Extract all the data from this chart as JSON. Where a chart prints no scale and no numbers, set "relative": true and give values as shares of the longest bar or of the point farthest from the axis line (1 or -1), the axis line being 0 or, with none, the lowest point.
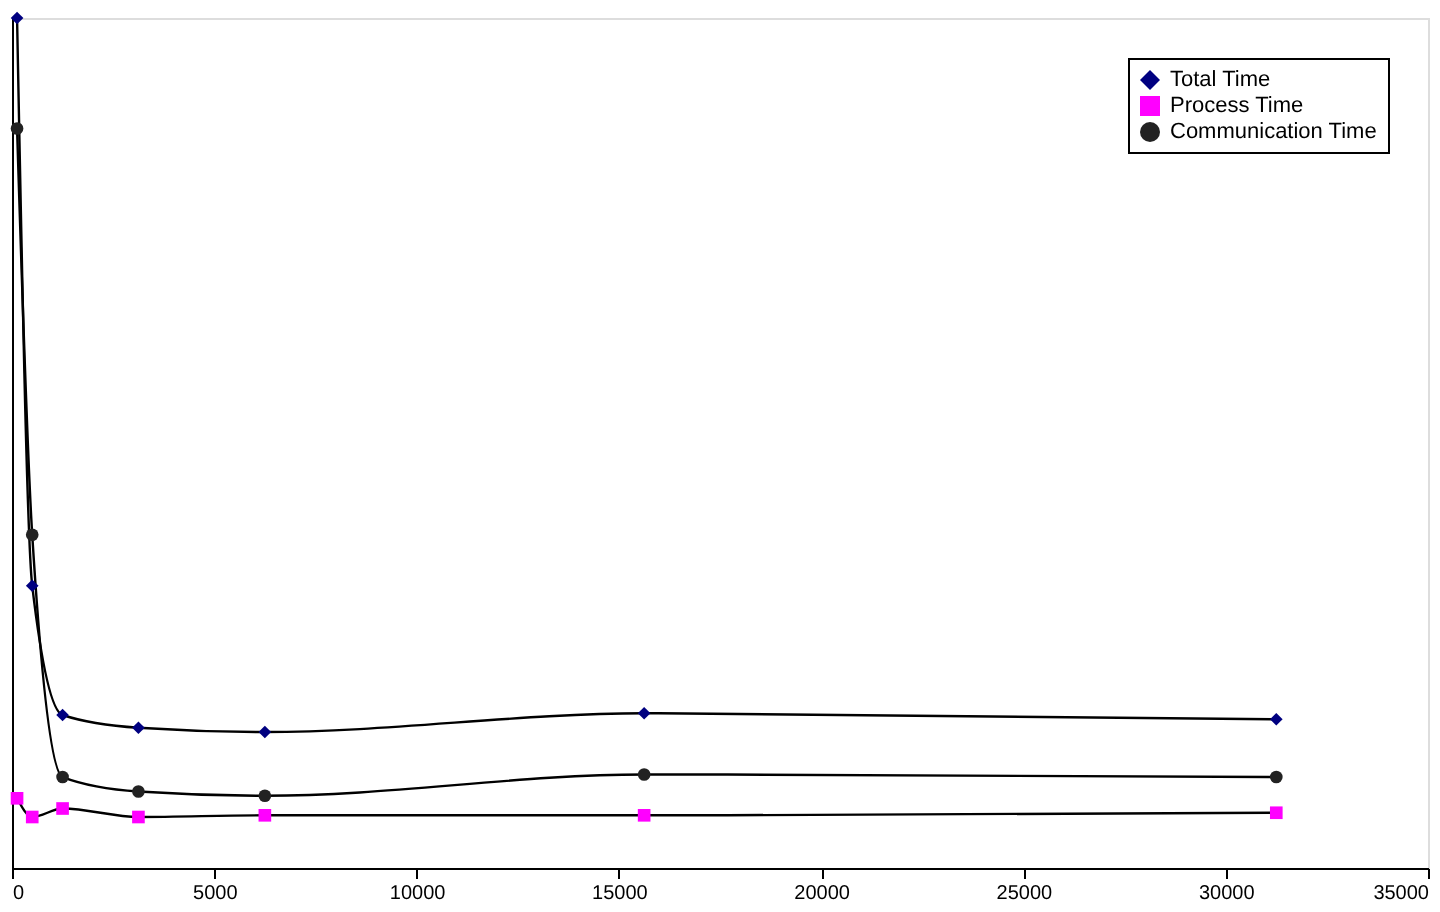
{
  "chart_data": {
    "type": "line",
    "relative": true,
    "x": [
      125,
      500,
      1250,
      3125,
      6250,
      15625,
      31250
    ],
    "xlim": [
      0,
      35000
    ],
    "xticks": [
      0,
      5000,
      10000,
      15000,
      20000,
      25000,
      30000,
      35000
    ],
    "series": [
      {
        "name": "Total Time",
        "color": "#000080",
        "marker": "diamond",
        "values": [
          1,
          0.332,
          0.18,
          0.165,
          0.16,
          0.182,
          0.175
        ]
      },
      {
        "name": "Process Time",
        "color": "#ff00ff",
        "marker": "square",
        "values": [
          0.082,
          0.06,
          0.07,
          0.06,
          0.062,
          0.062,
          0.065
        ]
      },
      {
        "name": "Communication Time",
        "color": "#222222",
        "marker": "circle",
        "values": [
          0.87,
          0.392,
          0.107,
          0.09,
          0.085,
          0.11,
          0.107
        ]
      }
    ],
    "legend": "top right",
    "line_style": "solid"
  }
}
